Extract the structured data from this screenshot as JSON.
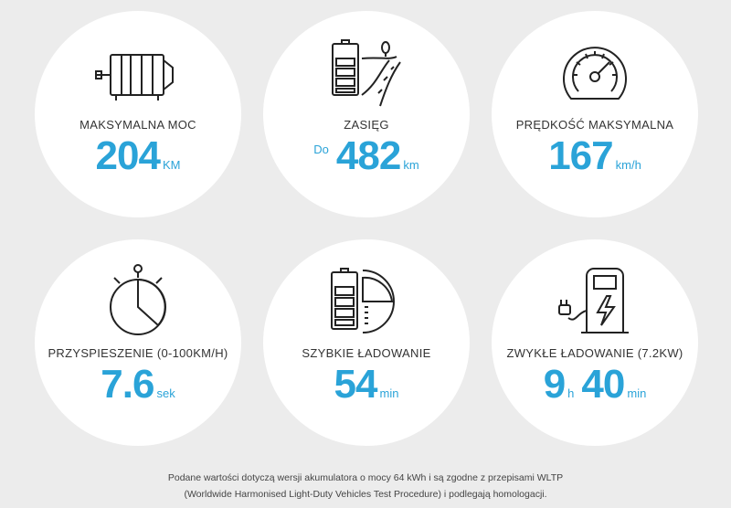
{
  "cards": [
    {
      "label": "MAKSYMALNA MOC",
      "value": "204",
      "unit": "KM",
      "icon": "electric-motor-icon"
    },
    {
      "label": "ZASIĘG",
      "prefix": "Do",
      "value": "482",
      "unit": "km",
      "icon": "battery-road-icon"
    },
    {
      "label": "PRĘDKOŚĆ MAKSYMALNA",
      "value": "167",
      "unit": "km/h",
      "icon": "speedometer-icon"
    },
    {
      "label": "PRZYSPIESZENIE (0-100km/h)",
      "value": "7.6",
      "unit": "sek",
      "icon": "stopwatch-icon"
    },
    {
      "label": "SZYBKIE ŁADOWANIE",
      "value": "54",
      "unit": "min",
      "icon": "battery-fast-charge-icon"
    },
    {
      "label": "ZWYKŁE ŁADOWANIE (7.2kW)",
      "value_hours": "9",
      "unit_hours": "h",
      "value_minutes": "40",
      "unit_minutes": "min",
      "icon": "charging-station-icon"
    }
  ],
  "footnote": {
    "line1": "Podane wartości dotyczą wersji akumulatora o mocy 64 kWh i są zgodne z przepisami WLTP",
    "line2": "(Worldwide Harmonised Light-Duty Vehicles Test Procedure) i podlegają homologacji."
  },
  "colors": {
    "accent": "#2aa3d8",
    "background": "#ececec",
    "card": "#ffffff",
    "icon_stroke": "#222222"
  }
}
